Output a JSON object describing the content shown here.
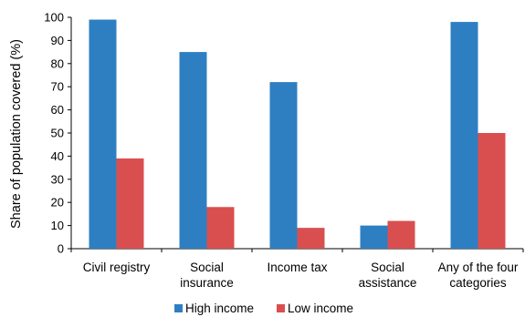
{
  "chart_data": {
    "type": "bar",
    "ylabel": "Share of population covered (%)",
    "xlabel": "",
    "ylim": [
      0,
      100
    ],
    "yticks": [
      0,
      10,
      20,
      30,
      40,
      50,
      60,
      70,
      80,
      90,
      100
    ],
    "categories": [
      [
        "Civil registry"
      ],
      [
        "Social",
        "insurance"
      ],
      [
        "Income tax"
      ],
      [
        "Social",
        "assistance"
      ],
      [
        "Any of the four",
        "categories"
      ]
    ],
    "series": [
      {
        "name": "High income",
        "color": "#2e7fc2",
        "values": [
          99,
          85,
          72,
          10,
          98
        ]
      },
      {
        "name": "Low income",
        "color": "#d94f4f",
        "values": [
          39,
          18,
          9,
          12,
          50
        ]
      }
    ],
    "grid": false,
    "legend_position": "bottom-center"
  }
}
